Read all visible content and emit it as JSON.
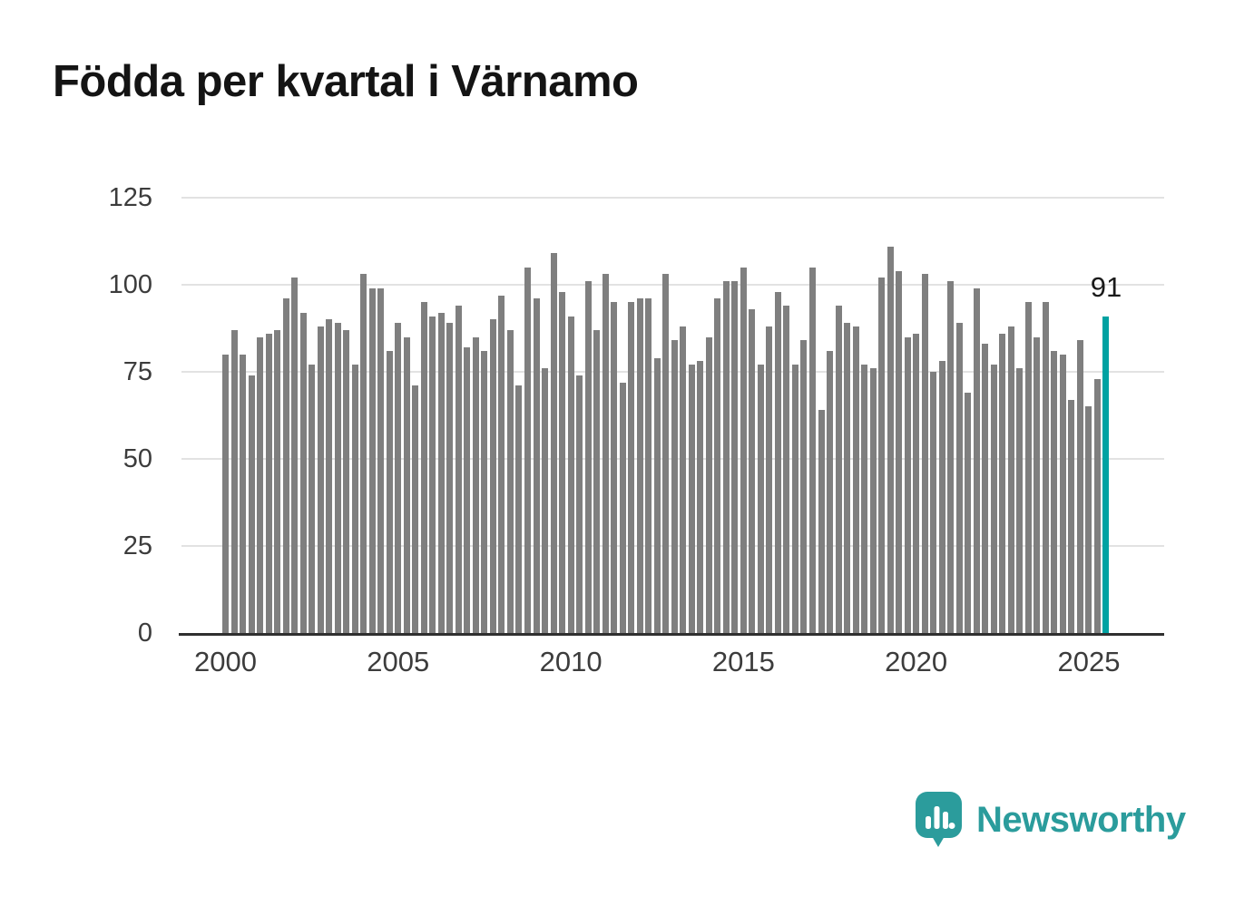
{
  "title": "Födda per kvartal i Värnamo",
  "brand": {
    "name": "Newsworthy",
    "color": "#2b9c9c",
    "icon": "newsworthy-speech-bubble-bar-chart"
  },
  "annotation": {
    "last_value_label": "91"
  },
  "chart_data": {
    "type": "bar",
    "title": "Födda per kvartal i Värnamo",
    "x_unit": "quarter",
    "x_start": "2000 Q1",
    "x_end": "2025 Q3",
    "values": [
      80,
      87,
      80,
      74,
      85,
      86,
      87,
      96,
      102,
      92,
      77,
      88,
      90,
      89,
      87,
      77,
      103,
      99,
      99,
      81,
      89,
      85,
      71,
      95,
      91,
      92,
      89,
      94,
      82,
      85,
      81,
      90,
      97,
      87,
      71,
      105,
      96,
      76,
      109,
      98,
      91,
      74,
      101,
      87,
      103,
      95,
      72,
      95,
      96,
      96,
      79,
      103,
      84,
      88,
      77,
      78,
      85,
      96,
      101,
      101,
      105,
      93,
      77,
      88,
      98,
      94,
      77,
      84,
      105,
      64,
      81,
      94,
      89,
      88,
      77,
      76,
      102,
      111,
      104,
      85,
      86,
      103,
      75,
      78,
      101,
      89,
      69,
      99,
      83,
      77,
      86,
      88,
      76,
      95,
      85,
      95,
      81,
      80,
      67,
      84,
      65,
      73,
      91
    ],
    "highlight_last_bar": true,
    "highlight_value": 91,
    "highlight_label": "91",
    "y_ticks": [
      0,
      25,
      50,
      75,
      100,
      125
    ],
    "ylim": [
      0,
      125
    ],
    "x_ticks": [
      {
        "index": 0,
        "label": "2000"
      },
      {
        "index": 20,
        "label": "2005"
      },
      {
        "index": 40,
        "label": "2010"
      },
      {
        "index": 60,
        "label": "2015"
      },
      {
        "index": 80,
        "label": "2020"
      },
      {
        "index": 100,
        "label": "2025"
      }
    ],
    "bar_color": "#7f7f7f",
    "highlight_color": "#00a2a2",
    "grid": "horizontal",
    "gridline_color": "#e2e2e2",
    "axis_color": "#2f2f2f",
    "legend": "none"
  }
}
